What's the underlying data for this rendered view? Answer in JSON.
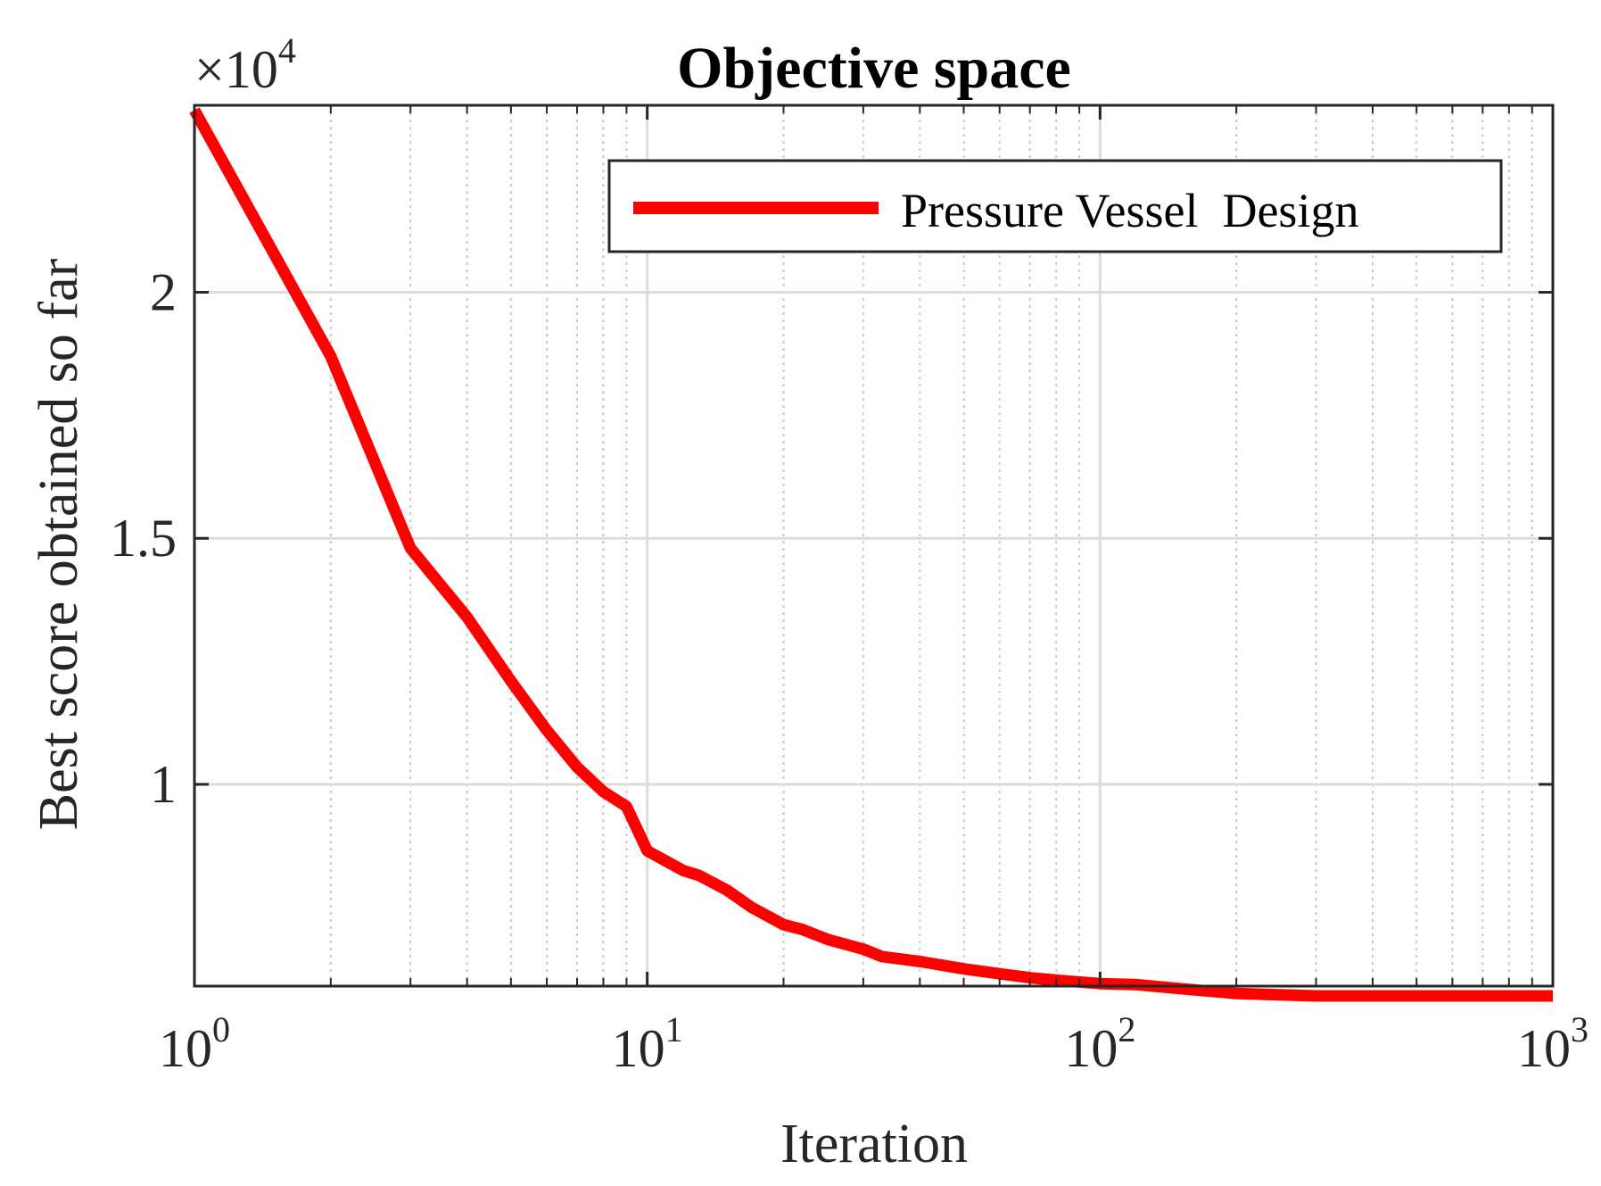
{
  "chart_data": {
    "type": "line",
    "title": "Objective space",
    "xlabel": "Iteration",
    "ylabel": "Best score obtained so far",
    "xscale": "log",
    "xlim": [
      1,
      1000
    ],
    "ylim": [
      5900,
      23800
    ],
    "y_multiplier": "×10",
    "y_multiplier_exponent": "4",
    "grid": true,
    "legend_position": "top-right",
    "xticks": [
      {
        "base": "10",
        "exp": "0",
        "value": 1
      },
      {
        "base": "10",
        "exp": "1",
        "value": 10
      },
      {
        "base": "10",
        "exp": "2",
        "value": 100
      },
      {
        "base": "10",
        "exp": "3",
        "value": 1000
      }
    ],
    "yticks": [
      {
        "label": "1",
        "value": 10000
      },
      {
        "label": "1.5",
        "value": 15000
      },
      {
        "label": "2",
        "value": 20000
      }
    ],
    "series": [
      {
        "name": "Pressure Vessel  Design",
        "color": "#ff0000",
        "x": [
          1,
          2,
          3,
          4,
          5,
          6,
          7,
          8,
          9,
          10,
          12,
          13,
          15,
          17,
          20,
          22,
          25,
          30,
          33,
          40,
          50,
          60,
          70,
          80,
          100,
          120,
          150,
          200,
          300,
          500,
          700,
          1000
        ],
        "y": [
          23700,
          18700,
          14800,
          13400,
          12100,
          11100,
          10350,
          9850,
          9550,
          8650,
          8250,
          8150,
          7850,
          7500,
          7150,
          7050,
          6850,
          6650,
          6500,
          6400,
          6250,
          6150,
          6070,
          6020,
          5950,
          5930,
          5850,
          5750,
          5700,
          5700,
          5700,
          5700
        ]
      }
    ]
  }
}
